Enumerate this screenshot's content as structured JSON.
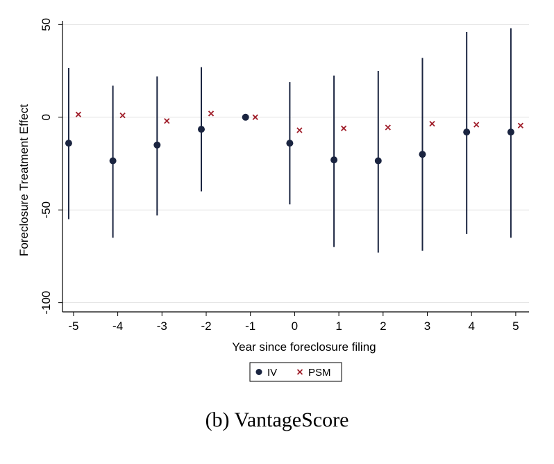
{
  "chart_data": {
    "type": "scatter",
    "xlabel": "Year since foreclosure filing",
    "ylabel": "Foreclosure Treatment Effect",
    "x_ticks": [
      -5,
      -4,
      -3,
      -2,
      -1,
      0,
      1,
      2,
      3,
      4,
      5
    ],
    "y_ticks": [
      50,
      0,
      -50,
      -100
    ],
    "xlim": [
      -5.25,
      5.3
    ],
    "ylim": [
      -105,
      52
    ],
    "grid": "horizontal",
    "legend_position": "bottom-center",
    "series": [
      {
        "name": "IV",
        "marker": "filled-circle",
        "color": "#1a2440",
        "x": [
          -5,
          -4,
          -3,
          -2,
          -1,
          0,
          1,
          2,
          3,
          4,
          5
        ],
        "y": [
          -14,
          -23.5,
          -15,
          -6.5,
          0,
          -14,
          -23,
          -23.5,
          -20,
          -8,
          -8
        ],
        "ci_low": [
          -55,
          -65,
          -53,
          -40,
          0,
          -47,
          -70,
          -73,
          -72,
          -63,
          -65
        ],
        "ci_high": [
          26.5,
          17,
          22,
          27,
          0,
          19,
          22.5,
          25,
          32,
          46,
          48
        ]
      },
      {
        "name": "PSM",
        "marker": "x",
        "color": "#a01e2a",
        "x": [
          -5,
          -4,
          -3,
          -2,
          -1,
          0,
          1,
          2,
          3,
          4,
          5
        ],
        "y": [
          1.5,
          1,
          -2,
          2,
          0,
          -7,
          -6,
          -5.5,
          -3.5,
          -4,
          -4.5
        ]
      }
    ]
  },
  "caption": "(b) VantageScore"
}
